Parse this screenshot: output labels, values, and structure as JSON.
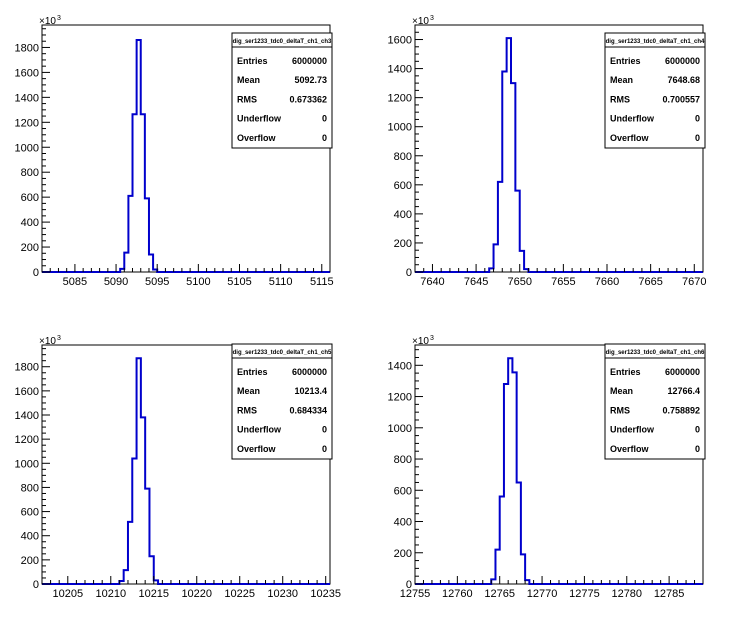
{
  "chart_data": [
    {
      "type": "bar",
      "title": "",
      "stats_title": "dig_ser1233_tdc0_deltaT_ch1_ch3",
      "stats": [
        {
          "label": "Entries",
          "value": "6000000"
        },
        {
          "label": "Mean",
          "value": "5092.73"
        },
        {
          "label": "RMS",
          "value": "0.673362"
        },
        {
          "label": "Underflow",
          "value": "0"
        },
        {
          "label": "Overflow",
          "value": "0"
        }
      ],
      "xlim": [
        5081,
        5116
      ],
      "ylim": [
        0,
        1980
      ],
      "y_multiplier": "×10",
      "y_multiplier_exp": "3",
      "xticks": [
        5085,
        5090,
        5095,
        5100,
        5105,
        5110,
        5115
      ],
      "xtick_labels": [
        "5085",
        "5090",
        "5095",
        "5100",
        "5105",
        "5110",
        "5115"
      ],
      "yticks": [
        0,
        200,
        400,
        600,
        800,
        1000,
        1200,
        1400,
        1600,
        1800
      ],
      "ytick_labels": [
        "0",
        "200",
        "400",
        "600",
        "800",
        "1000",
        "1200",
        "1400",
        "1600",
        "1800"
      ],
      "bin_width": 0.5,
      "bin_edges_start": 5090.5,
      "values": [
        25,
        155,
        610,
        1265,
        1860,
        1265,
        590,
        140,
        20
      ]
    },
    {
      "type": "bar",
      "title": "",
      "stats_title": "dig_ser1233_tdc0_deltaT_ch1_ch4",
      "stats": [
        {
          "label": "Entries",
          "value": "6000000"
        },
        {
          "label": "Mean",
          "value": "7648.68"
        },
        {
          "label": "RMS",
          "value": "0.700557"
        },
        {
          "label": "Underflow",
          "value": "0"
        },
        {
          "label": "Overflow",
          "value": "0"
        }
      ],
      "xlim": [
        7638,
        7671
      ],
      "ylim": [
        0,
        1700
      ],
      "y_multiplier": "×10",
      "y_multiplier_exp": "3",
      "xticks": [
        7640,
        7645,
        7650,
        7655,
        7660,
        7665,
        7670
      ],
      "xtick_labels": [
        "7640",
        "7645",
        "7650",
        "7655",
        "7660",
        "7665",
        "7670"
      ],
      "yticks": [
        0,
        200,
        400,
        600,
        800,
        1000,
        1200,
        1400,
        1600
      ],
      "ytick_labels": [
        "0",
        "200",
        "400",
        "600",
        "800",
        "1000",
        "1200",
        "1400",
        "1600"
      ],
      "bin_width": 0.5,
      "bin_edges_start": 7646.5,
      "values": [
        25,
        190,
        620,
        1380,
        1610,
        1300,
        560,
        145,
        20
      ]
    },
    {
      "type": "bar",
      "title": "",
      "stats_title": "dig_ser1233_tdc0_deltaT_ch1_ch5",
      "stats": [
        {
          "label": "Entries",
          "value": "6000000"
        },
        {
          "label": "Mean",
          "value": "10213.4"
        },
        {
          "label": "RMS",
          "value": "0.684334"
        },
        {
          "label": "Underflow",
          "value": "0"
        },
        {
          "label": "Overflow",
          "value": "0"
        }
      ],
      "xlim": [
        10202,
        10235.5
      ],
      "ylim": [
        0,
        1980
      ],
      "y_multiplier": "×10",
      "y_multiplier_exp": "3",
      "xticks": [
        10205,
        10210,
        10215,
        10220,
        10225,
        10230,
        10235
      ],
      "xtick_labels": [
        "10205",
        "10210",
        "10215",
        "10220",
        "10225",
        "10230",
        "10235"
      ],
      "yticks": [
        0,
        200,
        400,
        600,
        800,
        1000,
        1200,
        1400,
        1600,
        1800
      ],
      "ytick_labels": [
        "0",
        "200",
        "400",
        "600",
        "800",
        "1000",
        "1200",
        "1400",
        "1600",
        "1800"
      ],
      "bin_width": 0.5,
      "bin_edges_start": 10211,
      "values": [
        25,
        115,
        515,
        1040,
        1870,
        1380,
        790,
        230,
        30
      ]
    },
    {
      "type": "bar",
      "title": "",
      "stats_title": "dig_ser1233_tdc0_deltaT_ch1_ch6",
      "stats": [
        {
          "label": "Entries",
          "value": "6000000"
        },
        {
          "label": "Mean",
          "value": "12766.4"
        },
        {
          "label": "RMS",
          "value": "0.758892"
        },
        {
          "label": "Underflow",
          "value": "0"
        },
        {
          "label": "Overflow",
          "value": "0"
        }
      ],
      "xlim": [
        12755,
        12789
      ],
      "ylim": [
        0,
        1530
      ],
      "y_multiplier": "×10",
      "y_multiplier_exp": "3",
      "xticks": [
        12755,
        12760,
        12765,
        12770,
        12775,
        12780,
        12785
      ],
      "xtick_labels": [
        "12755",
        "12760",
        "12765",
        "12770",
        "12775",
        "12780",
        "12785"
      ],
      "yticks": [
        0,
        200,
        400,
        600,
        800,
        1000,
        1200,
        1400
      ],
      "ytick_labels": [
        "0",
        "200",
        "400",
        "600",
        "800",
        "1000",
        "1200",
        "1400"
      ],
      "bin_width": 0.5,
      "bin_edges_start": 12764,
      "values": [
        30,
        220,
        560,
        1280,
        1445,
        1355,
        650,
        190,
        25
      ]
    }
  ],
  "colors": {
    "histogram_line": "#0000cc",
    "frame": "#000000",
    "background": "#ffffff"
  }
}
